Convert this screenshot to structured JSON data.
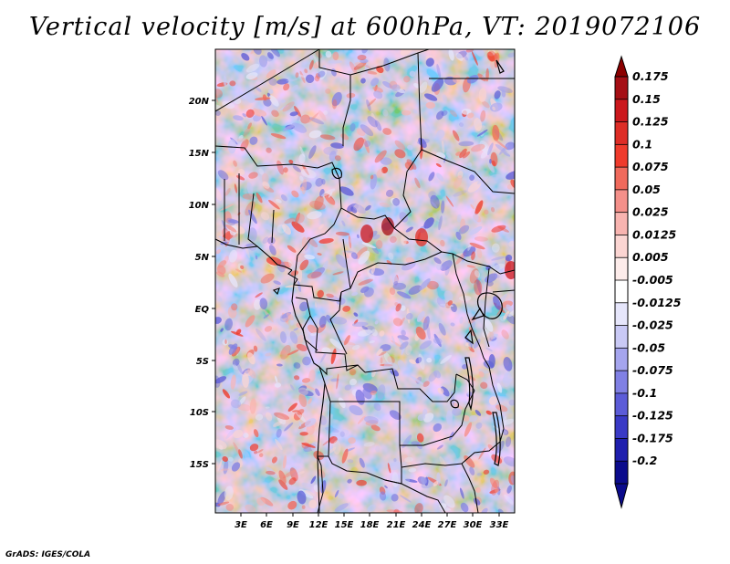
{
  "title": "Vertical velocity [m/s] at 600hPa, VT: 2019072106",
  "footer": "GrADS: IGES/COLA",
  "map": {
    "lat_labels": [
      "20N",
      "15N",
      "10N",
      "5N",
      "EQ",
      "5S",
      "10S",
      "15S"
    ],
    "lon_labels": [
      "3E",
      "6E",
      "9E",
      "12E",
      "15E",
      "18E",
      "21E",
      "24E",
      "27E",
      "30E",
      "33E"
    ]
  },
  "colorbar": {
    "labels": [
      "0.175",
      "0.15",
      "0.125",
      "0.1",
      "0.075",
      "0.05",
      "0.025",
      "0.0125",
      "0.005",
      "-0.005",
      "-0.0125",
      "-0.025",
      "-0.05",
      "-0.075",
      "-0.1",
      "-0.125",
      "-0.175",
      "-0.2"
    ],
    "colors": [
      "#a50f15",
      "#cb181d",
      "#de2d26",
      "#ef3b2c",
      "#f06a5c",
      "#f4908a",
      "#f8b4b0",
      "#fbd5d2",
      "#fdecea",
      "#ffffff",
      "#e6e6fb",
      "#c9c9f5",
      "#a5a5ee",
      "#8080e4",
      "#5c5cd8",
      "#3a3ac6",
      "#1f1fae",
      "#0b0b8c"
    ]
  }
}
